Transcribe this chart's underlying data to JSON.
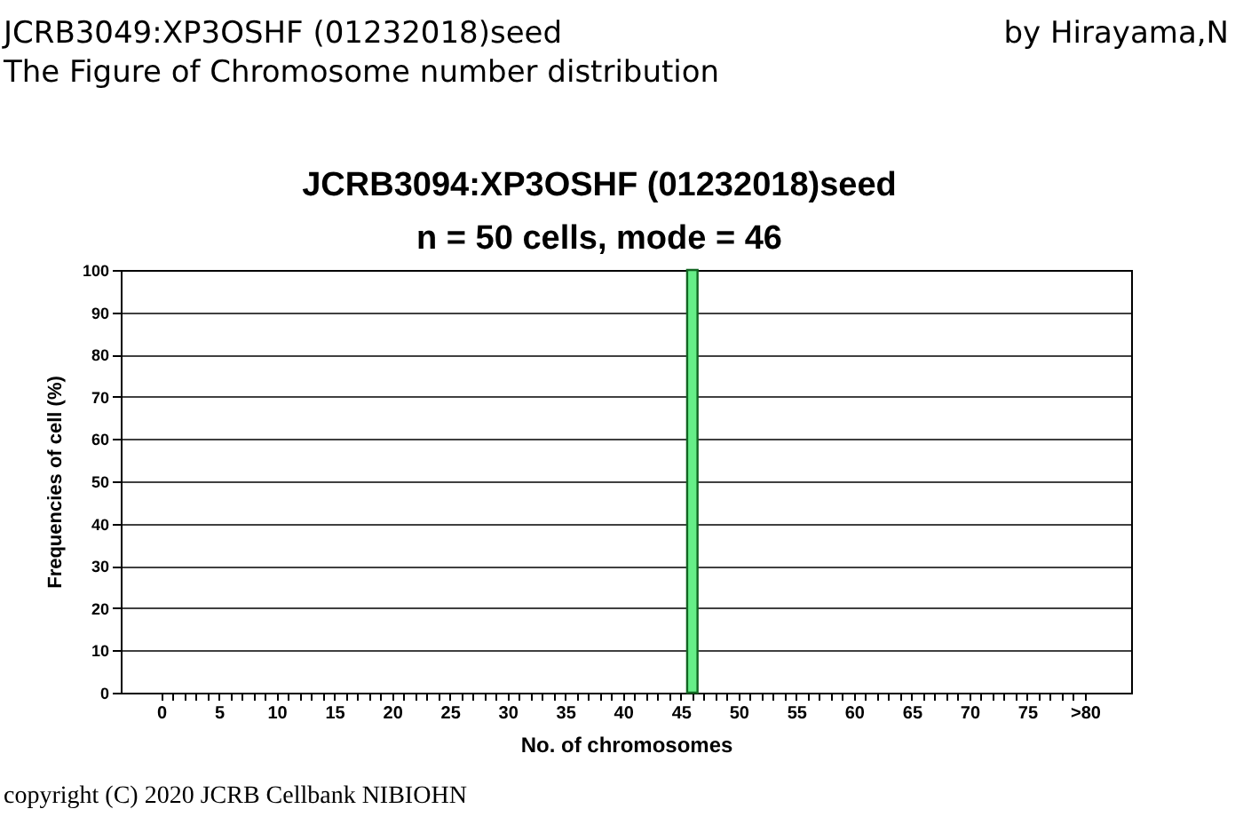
{
  "chart_data": {
    "type": "bar",
    "title": "JCRB3094:XP3OSHF (01232018)seed",
    "subtitle": "n = 50 cells, mode = 46",
    "xlabel": "No. of chromosomes",
    "ylabel": "Frequencies of cell (%)",
    "annotations": [
      "JCRB3049:XP3OSHF (01232018)seed",
      "The Figure of Chromosome number distribution",
      "by Hirayama,N",
      "copyright (C) 2020 JCRB Cellbank NIBIOHN"
    ],
    "x": [
      46
    ],
    "series": [
      {
        "color": "#66ee88",
        "values": [
          100
        ]
      }
    ],
    "xlim": [
      -3.5,
      84
    ],
    "xticks": [
      0,
      {
        "value": 1,
        "label": null
      },
      {
        "value": 2,
        "label": null
      },
      {
        "value": 3,
        "label": null
      },
      {
        "value": 4,
        "label": null
      },
      5,
      {
        "value": 6,
        "label": null
      },
      {
        "value": 7,
        "label": null
      },
      {
        "value": 8,
        "label": null
      },
      {
        "value": 9,
        "label": null
      },
      10,
      {
        "value": 11,
        "label": null
      },
      {
        "value": 12,
        "label": null
      },
      {
        "value": 13,
        "label": null
      },
      {
        "value": 14,
        "label": null
      },
      15,
      {
        "value": 16,
        "label": null
      },
      {
        "value": 17,
        "label": null
      },
      {
        "value": 18,
        "label": null
      },
      {
        "value": 19,
        "label": null
      },
      20,
      {
        "value": 21,
        "label": null
      },
      {
        "value": 22,
        "label": null
      },
      {
        "value": 23,
        "label": null
      },
      {
        "value": 24,
        "label": null
      },
      25,
      {
        "value": 26,
        "label": null
      },
      {
        "value": 27,
        "label": null
      },
      {
        "value": 28,
        "label": null
      },
      {
        "value": 29,
        "label": null
      },
      30,
      {
        "value": 31,
        "label": null
      },
      {
        "value": 32,
        "label": null
      },
      {
        "value": 33,
        "label": null
      },
      {
        "value": 34,
        "label": null
      },
      35,
      {
        "value": 36,
        "label": null
      },
      {
        "value": 37,
        "label": null
      },
      {
        "value": 38,
        "label": null
      },
      {
        "value": 39,
        "label": null
      },
      40,
      {
        "value": 41,
        "label": null
      },
      {
        "value": 42,
        "label": null
      },
      {
        "value": 43,
        "label": null
      },
      {
        "value": 44,
        "label": null
      },
      45,
      {
        "value": 46,
        "label": null
      },
      {
        "value": 47,
        "label": null
      },
      {
        "value": 48,
        "label": null
      },
      {
        "value": 49,
        "label": null
      },
      50,
      {
        "value": 51,
        "label": null
      },
      {
        "value": 52,
        "label": null
      },
      {
        "value": 53,
        "label": null
      },
      {
        "value": 54,
        "label": null
      },
      55,
      {
        "value": 56,
        "label": null
      },
      {
        "value": 57,
        "label": null
      },
      {
        "value": 58,
        "label": null
      },
      {
        "value": 59,
        "label": null
      },
      60,
      {
        "value": 61,
        "label": null
      },
      {
        "value": 62,
        "label": null
      },
      {
        "value": 63,
        "label": null
      },
      {
        "value": 64,
        "label": null
      },
      65,
      {
        "value": 66,
        "label": null
      },
      {
        "value": 67,
        "label": null
      },
      {
        "value": 68,
        "label": null
      },
      {
        "value": 69,
        "label": null
      },
      70,
      {
        "value": 71,
        "label": null
      },
      {
        "value": 72,
        "label": null
      },
      {
        "value": 73,
        "label": null
      },
      {
        "value": 74,
        "label": null
      },
      75,
      {
        "value": 76,
        "label": null
      },
      {
        "value": 77,
        "label": null
      },
      {
        "value": 78,
        "label": null
      },
      {
        "value": 79,
        "label": null
      },
      {
        "value": 80,
        "label": ">80"
      }
    ],
    "ylim": [
      0,
      100
    ],
    "yticks": [
      0,
      10,
      20,
      30,
      40,
      50,
      60,
      70,
      80,
      90,
      100
    ],
    "grid": "y"
  }
}
